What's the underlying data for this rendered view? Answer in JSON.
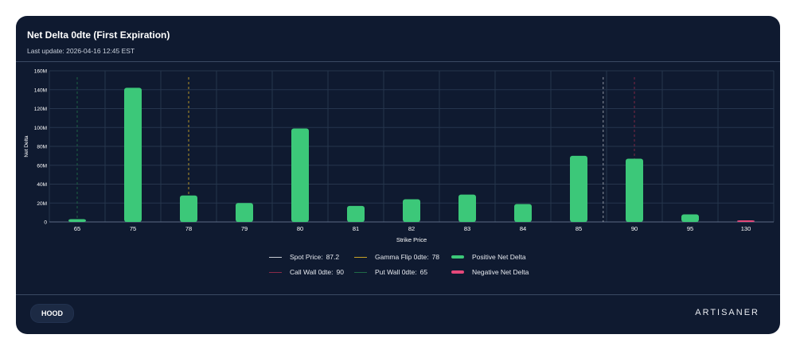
{
  "header": {
    "title": "Net Delta 0dte (First Expiration)",
    "last_update": "Last update: 2026-04-16 12:45 EST"
  },
  "footer": {
    "ticker": "HOOD",
    "brand": "ARTISANER"
  },
  "colors": {
    "background": "#0f1a30",
    "positive": "#3cc879",
    "negative": "#e5487a",
    "spot": "#c8ccd4",
    "gamma_flip": "#c9a227",
    "call_wall": "#8a2a48",
    "put_wall": "#1f6b46",
    "grid": "#26354d"
  },
  "chart_data": {
    "type": "bar",
    "title": "Net Delta 0dte (First Expiration)",
    "xlabel": "Strike Price",
    "ylabel": "Net Delta",
    "categories": [
      "65",
      "75",
      "78",
      "79",
      "80",
      "81",
      "82",
      "83",
      "84",
      "85",
      "90",
      "95",
      "130"
    ],
    "values": [
      3,
      142,
      28,
      20,
      99,
      17,
      24,
      29,
      19,
      70,
      67,
      8,
      1
    ],
    "value_unit": "M",
    "signs": [
      "pos",
      "pos",
      "pos",
      "pos",
      "pos",
      "pos",
      "pos",
      "pos",
      "pos",
      "pos",
      "pos",
      "pos",
      "neg"
    ],
    "ylim": [
      0,
      160
    ],
    "yticks": [
      0,
      20,
      40,
      60,
      80,
      100,
      120,
      140,
      160
    ],
    "ytick_labels": [
      "0",
      "20M",
      "40M",
      "60M",
      "80M",
      "100M",
      "120M",
      "140M",
      "160M"
    ],
    "grid": true,
    "markers": [
      {
        "name": "Spot Price",
        "value": 87.2,
        "style": "spot"
      },
      {
        "name": "Gamma Flip 0dte",
        "value": 78,
        "style": "gamma_flip"
      },
      {
        "name": "Call Wall 0dte",
        "value": 90,
        "style": "call_wall"
      },
      {
        "name": "Put Wall 0dte",
        "value": 65,
        "style": "put_wall"
      }
    ],
    "legend": {
      "position": "bottom-center",
      "entries": [
        {
          "label": "Spot Price:",
          "value": "87.2"
        },
        {
          "label": "Gamma Flip 0dte:",
          "value": "78"
        },
        {
          "label": "Positive Net Delta",
          "value": ""
        },
        {
          "label": "Call Wall 0dte:",
          "value": "90"
        },
        {
          "label": "Put Wall 0dte:",
          "value": "65"
        },
        {
          "label": "Negative Net Delta",
          "value": ""
        }
      ]
    }
  }
}
